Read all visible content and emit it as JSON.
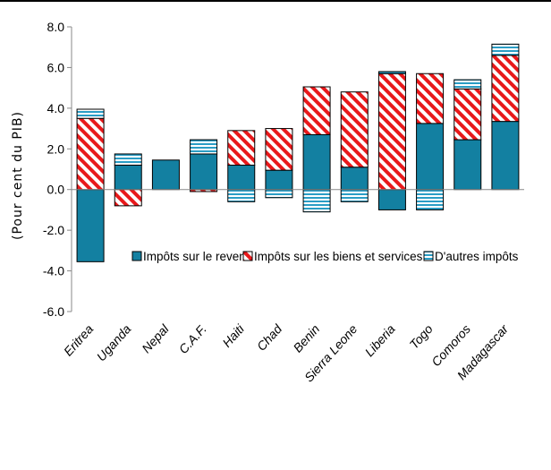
{
  "chart_data": {
    "type": "bar",
    "stacked": true,
    "title": "",
    "ylabel": "(Pour cent du PIB)",
    "xlabel": "",
    "ylim": [
      -6.0,
      8.0
    ],
    "yticks": [
      "8.0",
      "6.0",
      "4.0",
      "2.0",
      "0.0",
      "-2.0",
      "-4.0",
      "-6.0"
    ],
    "ytick_values": [
      8,
      6,
      4,
      2,
      0,
      -2,
      -4,
      -6
    ],
    "grid": false,
    "legend_position": "inside-lower-right",
    "categories": [
      "Eritrea",
      "Uganda",
      "Nepal",
      "C.A.F.",
      "Haiti",
      "Chad",
      "Benin",
      "Sierra Leone",
      "Liberia",
      "Togo",
      "Comoros",
      "Madagascar"
    ],
    "series": [
      {
        "name": "Impôts sur le revenu",
        "color": "#1380A1",
        "pattern": "solid",
        "values": [
          -3.55,
          1.2,
          1.45,
          1.75,
          1.2,
          0.95,
          2.7,
          1.1,
          -1.0,
          3.25,
          2.45,
          3.35
        ]
      },
      {
        "name": "Impôts sur les biens et services",
        "color": "#E8191B",
        "pattern": "diagonal-stripes",
        "values": [
          3.5,
          -0.8,
          0.0,
          -0.1,
          1.7,
          2.05,
          2.35,
          3.7,
          5.7,
          2.45,
          2.5,
          3.25
        ]
      },
      {
        "name": "D'autres impôts",
        "color": "#2A9DC5",
        "pattern": "horizontal-stripes",
        "values": [
          0.45,
          0.55,
          0.0,
          0.7,
          -0.6,
          -0.4,
          -1.1,
          -0.6,
          0.1,
          -1.0,
          0.45,
          0.55
        ]
      }
    ]
  }
}
